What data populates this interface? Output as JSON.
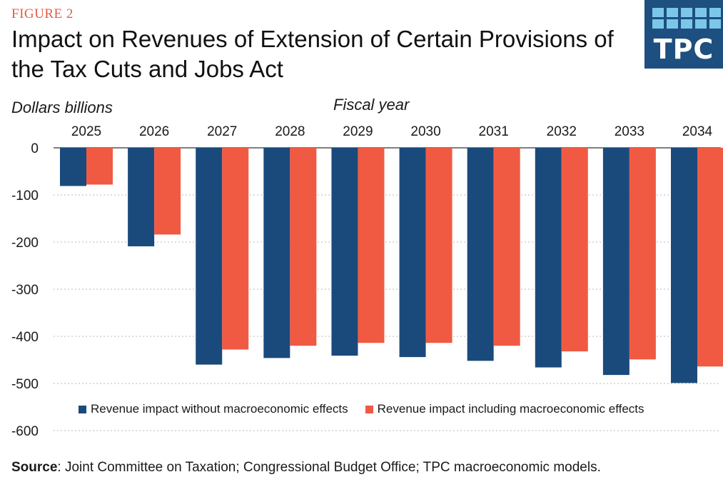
{
  "figure_label": "FIGURE 2",
  "title": "Impact on Revenues of Extension of Certain Provisions of the Tax Cuts and Jobs Act",
  "logo": {
    "text": "TPC",
    "color": "#1d4f80",
    "tile_color": "#7cc7e8"
  },
  "source": {
    "label": "Source",
    "text": ": Joint Committee on Taxation; Congressional Budget Office; TPC macroeconomic models."
  },
  "chart_data": {
    "type": "bar",
    "title": "Impact on Revenues of Extension of Certain Provisions of the Tax Cuts and Jobs Act",
    "ylabel": "Dollars billions",
    "xlabel": "Fiscal year",
    "ylim": [
      -600,
      0
    ],
    "yticks": [
      0,
      -100,
      -200,
      -300,
      -400,
      -500,
      -600
    ],
    "grid": true,
    "x_axis_position": "top",
    "legend_position": "bottom",
    "categories": [
      "2025",
      "2026",
      "2027",
      "2028",
      "2029",
      "2030",
      "2031",
      "2032",
      "2033",
      "2034"
    ],
    "series": [
      {
        "name": "Revenue impact without macroeconomic effects",
        "color": "#1a4a7c",
        "values": [
          -81,
          -209,
          -460,
          -446,
          -441,
          -444,
          -452,
          -466,
          -482,
          -499
        ]
      },
      {
        "name": "Revenue impact including macroeconomic effects",
        "color": "#f05a43",
        "values": [
          -78,
          -184,
          -428,
          -420,
          -414,
          -414,
          -420,
          -432,
          -449,
          -464
        ]
      }
    ]
  }
}
